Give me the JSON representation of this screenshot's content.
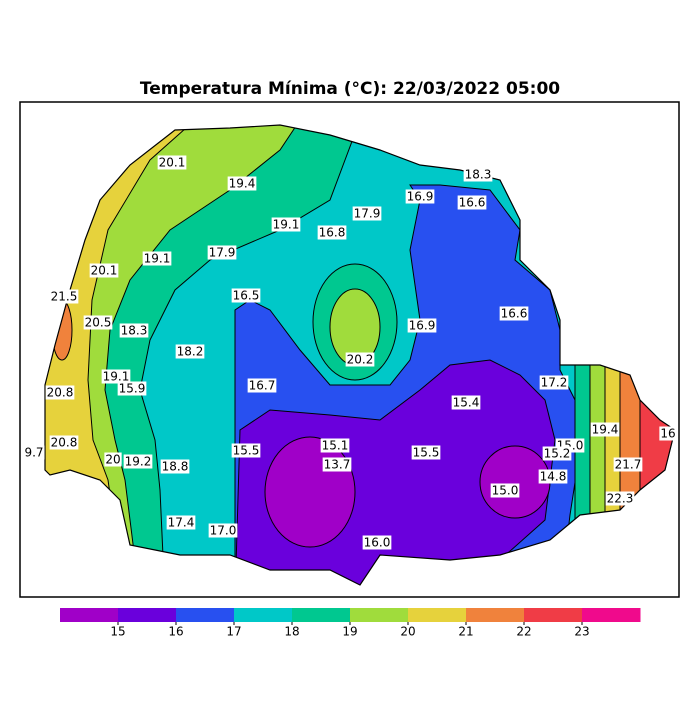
{
  "title": "Temperatura Mínima (°C): 22/03/2022 05:00",
  "stations": [
    "20.1",
    "19.4",
    "18.3",
    "16.9",
    "16.6",
    "17.9",
    "19.1",
    "16.8",
    "20.1",
    "19.1",
    "17.9",
    "21.5",
    "16.5",
    "20.5",
    "18.3",
    "16.9",
    "16.6",
    "18.2",
    "20.2",
    "19.1",
    "15.9",
    "16.7",
    "17.2",
    "20.8",
    "15.4",
    "19.4",
    "20.8",
    "9.7",
    "15.1",
    "15.5",
    "13.7",
    "15.5",
    "15.0",
    "15.2",
    "20",
    "19.2",
    "18.8",
    "21.7",
    "14.8",
    "15.0",
    "22.3",
    "17.4",
    "17.0",
    "16.0",
    "16"
  ],
  "colorbar": {
    "range": [
      14,
      24
    ],
    "ticks": [
      15,
      16,
      17,
      18,
      19,
      20,
      21,
      22,
      23
    ],
    "colors": [
      "#a000c8",
      "#6a00dc",
      "#2850f0",
      "#00c8c8",
      "#00c890",
      "#a0dc3c",
      "#e6d23c",
      "#f0823c",
      "#f03c46",
      "#f00a8c"
    ]
  }
}
